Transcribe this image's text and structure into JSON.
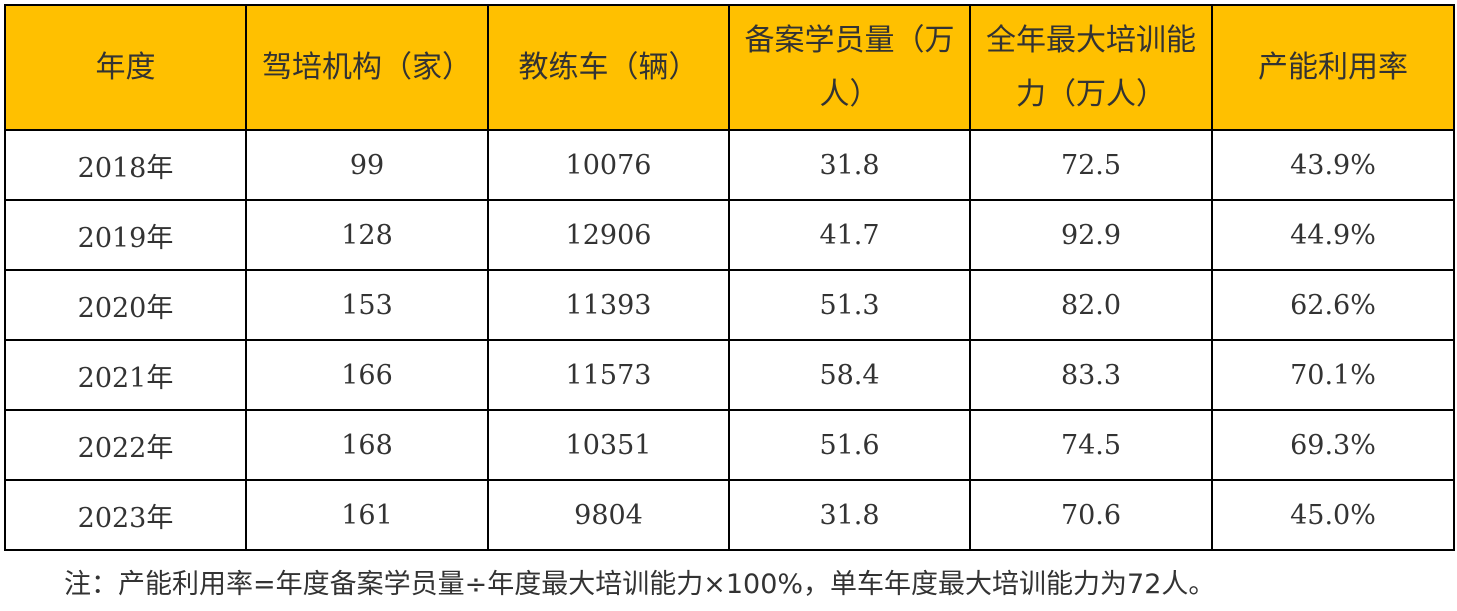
{
  "table": {
    "headers": [
      "年度",
      "驾培机构（家）",
      "教练车（辆）",
      "备案学员量（万人）",
      "全年最大培训能力（万人）",
      "产能利用率"
    ],
    "rows": [
      [
        "2018年",
        "99",
        "10076",
        "31.8",
        "72.5",
        "43.9%"
      ],
      [
        "2019年",
        "128",
        "12906",
        "41.7",
        "92.9",
        "44.9%"
      ],
      [
        "2020年",
        "153",
        "11393",
        "51.3",
        "82.0",
        "62.6%"
      ],
      [
        "2021年",
        "166",
        "11573",
        "58.4",
        "83.3",
        "70.1%"
      ],
      [
        "2022年",
        "168",
        "10351",
        "51.6",
        "74.5",
        "69.3%"
      ],
      [
        "2023年",
        "161",
        "9804",
        "31.8",
        "70.6",
        "45.0%"
      ]
    ]
  },
  "note": "注：产能利用率=年度备案学员量÷年度最大培训能力×100%，单车年度最大培训能力为72人。"
}
